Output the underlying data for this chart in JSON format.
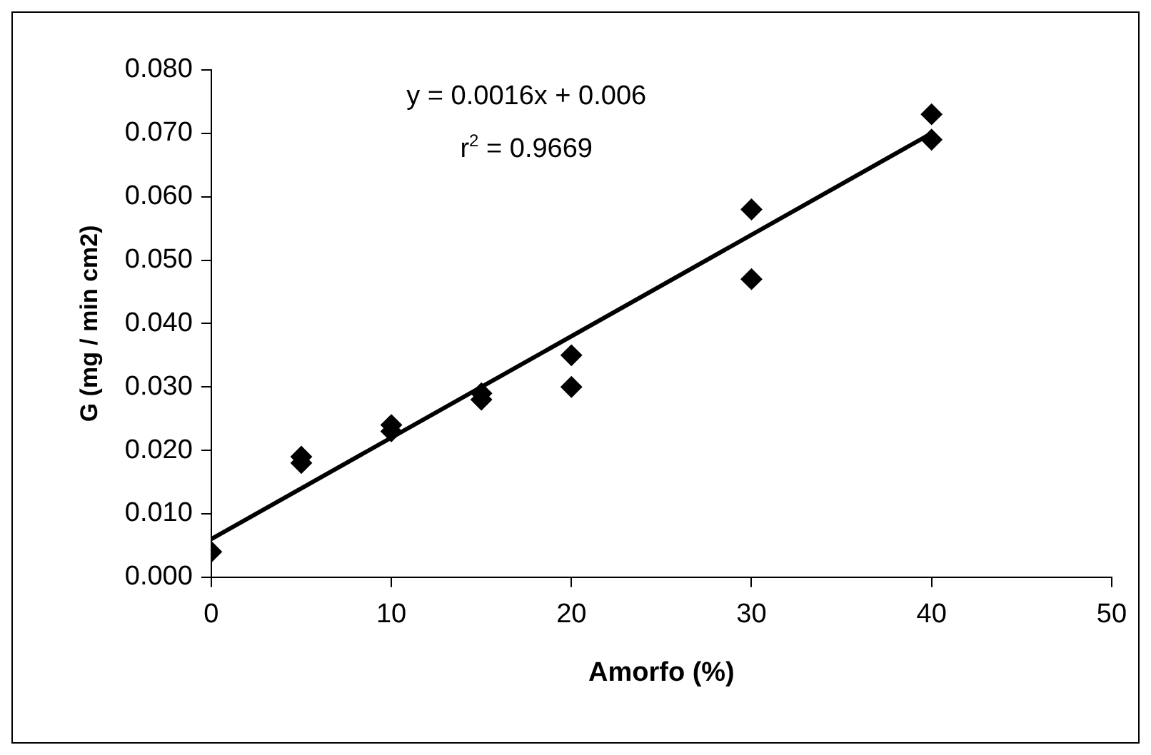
{
  "chart_data": {
    "type": "scatter",
    "xlabel": "Amorfo (%)",
    "ylabel": "G (mg / min cm2)",
    "annotations": [
      "y = 0.0016x + 0.006",
      "r$^{2}$ = 0.9669"
    ],
    "xlim": [
      0,
      50
    ],
    "xticks": [
      0,
      10,
      20,
      30,
      40,
      50
    ],
    "ylim": [
      0,
      0.08
    ],
    "yticks": [
      {
        "value": 0,
        "label": "0.000"
      },
      {
        "value": 0.01,
        "label": "0.010"
      },
      {
        "value": 0.02,
        "label": "0.020"
      },
      {
        "value": 0.03,
        "label": "0.030"
      },
      {
        "value": 0.04,
        "label": "0.040"
      },
      {
        "value": 0.05,
        "label": "0.050"
      },
      {
        "value": 0.06,
        "label": "0.060"
      },
      {
        "value": 0.07,
        "label": "0.070"
      },
      {
        "value": 0.08,
        "label": "0.080"
      }
    ],
    "grid": false,
    "legend": false,
    "marker": "diamond",
    "series": [
      {
        "color": "#000000",
        "x": [
          0,
          5,
          5,
          10,
          10,
          15,
          15,
          20,
          20,
          30,
          30,
          40,
          40
        ],
        "values": [
          0.004,
          0.019,
          0.018,
          0.024,
          0.023,
          0.029,
          0.028,
          0.035,
          0.03,
          0.058,
          0.047,
          0.073,
          0.069
        ]
      },
      {
        "type": "line",
        "color": "#000000",
        "marker": "none",
        "line_style": "solid",
        "x": [
          0,
          40
        ],
        "values": [
          0.006,
          0.07
        ]
      }
    ]
  }
}
